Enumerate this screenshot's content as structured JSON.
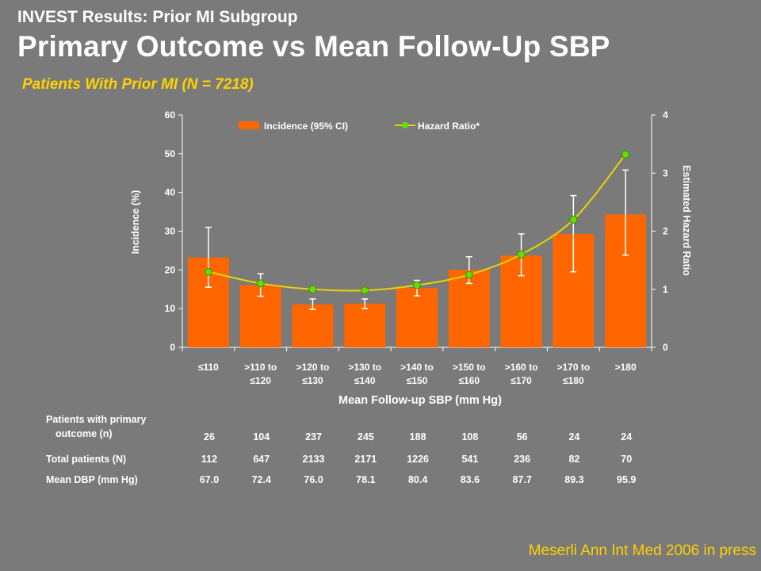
{
  "header": {
    "supertitle": "INVEST Results: Prior MI Subgroup",
    "title": "Primary Outcome vs Mean Follow-Up SBP",
    "subtitle": "Patients With Prior MI (N = 7218)"
  },
  "chart_data": {
    "type": "bar",
    "categories": [
      "≤110",
      ">110 to ≤120",
      ">120 to ≤130",
      ">130 to ≤140",
      ">140 to ≤150",
      ">150 to ≤160",
      ">160 to ≤170",
      ">170 to ≤180",
      ">180"
    ],
    "category_lines": [
      [
        "≤110"
      ],
      [
        ">110 to",
        "≤120"
      ],
      [
        ">120 to",
        "≤130"
      ],
      [
        ">130 to",
        "≤140"
      ],
      [
        ">140 to",
        "≤150"
      ],
      [
        ">150 to",
        "≤160"
      ],
      [
        ">160 to",
        "≤170"
      ],
      [
        ">170 to",
        "≤180"
      ],
      [
        ">180"
      ]
    ],
    "series": [
      {
        "name": "Incidence (95% CI)",
        "type": "bar",
        "axis": "left",
        "values": [
          23.2,
          16.1,
          11.1,
          11.3,
          15.3,
          20.0,
          23.7,
          29.3,
          34.3
        ],
        "ci_low": [
          15.5,
          13.2,
          9.8,
          10.0,
          13.3,
          16.5,
          18.5,
          19.5,
          23.8
        ],
        "ci_high": [
          31.0,
          19.0,
          12.5,
          12.5,
          17.3,
          23.4,
          29.3,
          39.2,
          45.8
        ]
      },
      {
        "name": "Hazard Ratio*",
        "type": "line",
        "axis": "right",
        "values": [
          1.3,
          1.1,
          1.0,
          0.98,
          1.07,
          1.25,
          1.6,
          2.2,
          3.32
        ]
      }
    ],
    "xlabel": "Mean Follow-up SBP (mm Hg)",
    "ylabel": "Incidence (%)",
    "y2label": "Estimated Hazard Ratio",
    "ylim": [
      0,
      60
    ],
    "y2lim": [
      0,
      4
    ],
    "yticks": [
      0,
      10,
      20,
      30,
      40,
      50,
      60
    ],
    "y2ticks": [
      0,
      1,
      2,
      3,
      4
    ],
    "legend_position": "top",
    "colors": {
      "bar": "#ff6600",
      "line": "#e6d600",
      "marker": "#66dd00",
      "error": "#ffffff",
      "axis": "#ffffff"
    }
  },
  "table": {
    "rows": [
      {
        "label": [
          "Patients with primary",
          "outcome (n)"
        ],
        "values": [
          "26",
          "104",
          "237",
          "245",
          "188",
          "108",
          "56",
          "24",
          "24"
        ]
      },
      {
        "label": [
          "Total patients (N)"
        ],
        "values": [
          "112",
          "647",
          "2133",
          "2171",
          "1226",
          "541",
          "236",
          "82",
          "70"
        ]
      },
      {
        "label": [
          "Mean DBP (mm Hg)"
        ],
        "values": [
          "67.0",
          "72.4",
          "76.0",
          "78.1",
          "80.4",
          "83.6",
          "87.7",
          "89.3",
          "95.9"
        ]
      }
    ]
  },
  "citation": "Meserli  Ann Int Med 2006 in press"
}
